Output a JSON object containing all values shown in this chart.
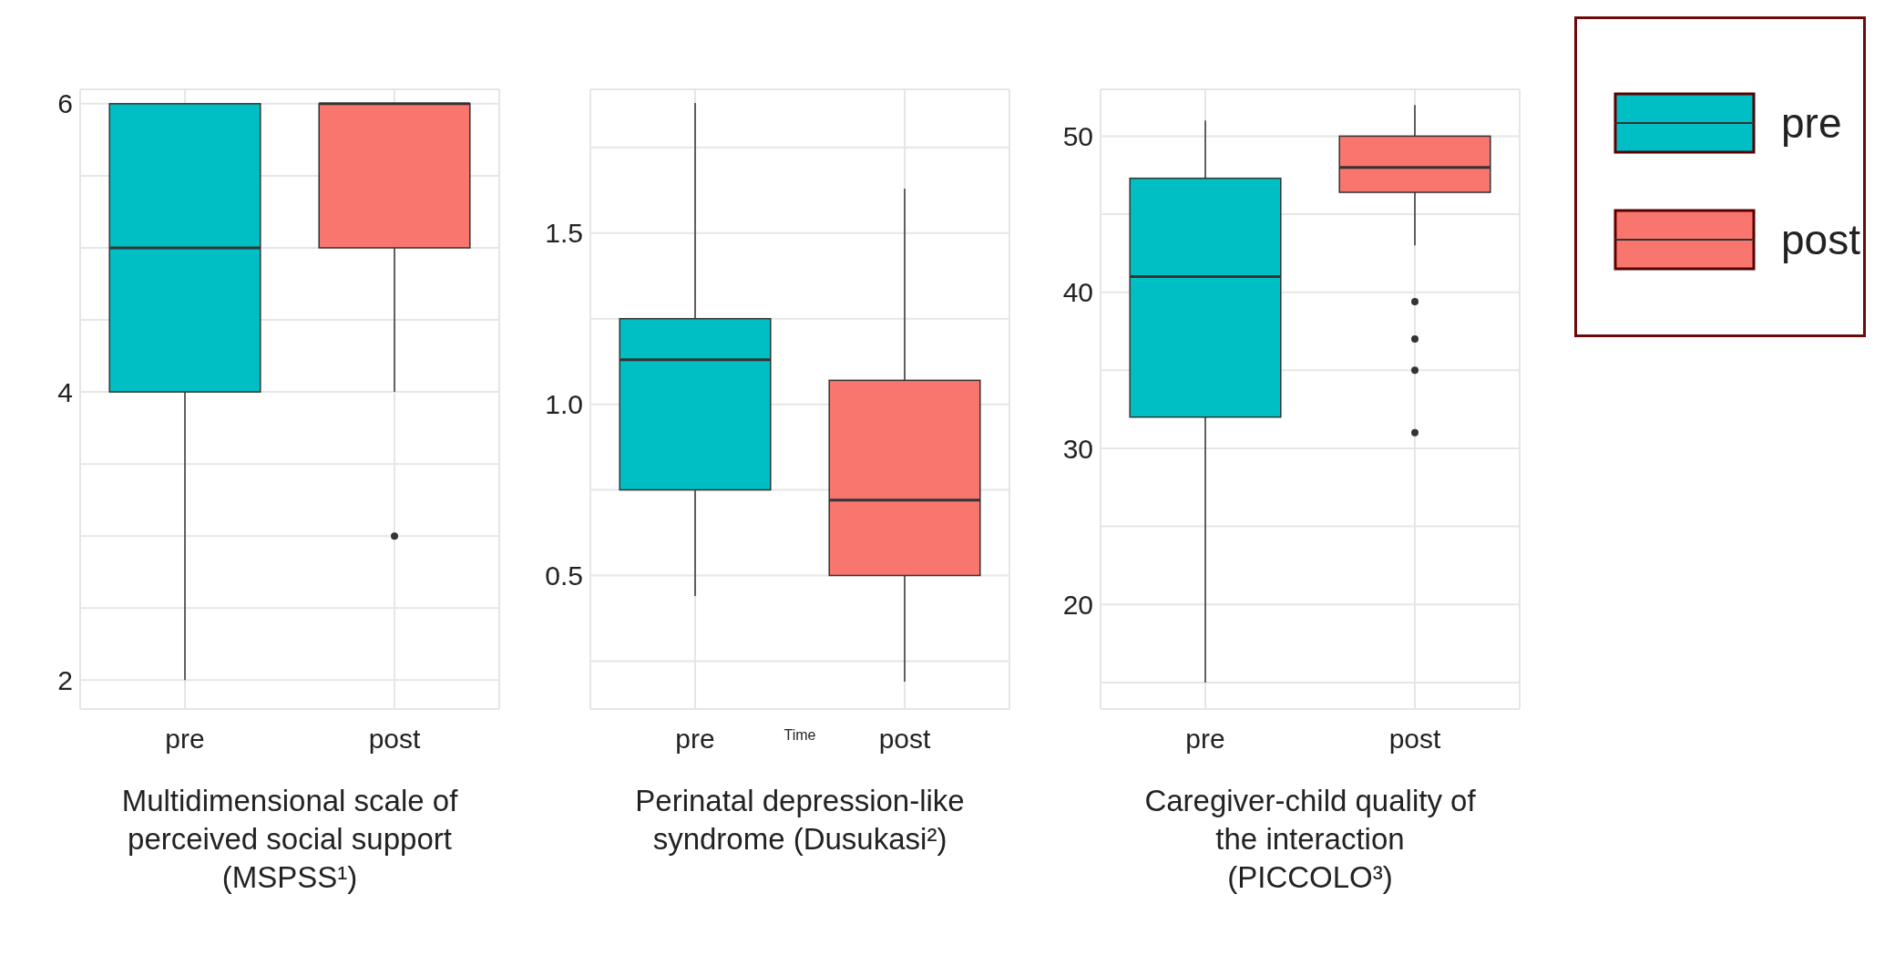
{
  "chart_data": [
    {
      "type": "box",
      "categories": [
        "pre",
        "post"
      ],
      "ylim": [
        1.8,
        6.1
      ],
      "yticks": [
        2,
        {
          "value": 2.5,
          "label": null
        },
        {
          "value": 3,
          "label": null
        },
        {
          "value": 3.5,
          "label": null
        },
        4,
        {
          "value": 4.5,
          "label": null
        },
        {
          "value": 5,
          "label": null
        },
        {
          "value": 5.5,
          "label": null
        },
        6
      ],
      "grid": true,
      "series": [
        {
          "color": "#00bfc4",
          "boxes": [
            {
              "low": 2,
              "q1": 4,
              "median": 5,
              "q3": 6,
              "high": 6
            },
            null
          ]
        },
        {
          "color": "#f8766d",
          "boxes": [
            null,
            {
              "low": 4,
              "q1": 5,
              "median": 6,
              "q3": 6,
              "high": 6,
              "outliers": [
                3
              ]
            }
          ]
        }
      ],
      "annotations": [
        "Multidimensional scale of perceived social support (MSPSS¹)"
      ]
    },
    {
      "type": "box",
      "categories": [
        "pre",
        "post"
      ],
      "xlabel": "Time",
      "ylim": [
        0.11,
        1.92
      ],
      "yticks": [
        {
          "value": 0.25,
          "label": null
        },
        {
          "value": 0.5,
          "label": "0.5"
        },
        {
          "value": 0.75,
          "label": null
        },
        {
          "value": 1,
          "label": "1.0"
        },
        {
          "value": 1.25,
          "label": null
        },
        {
          "value": 1.5,
          "label": "1.5"
        },
        {
          "value": 1.75,
          "label": null
        }
      ],
      "grid": true,
      "series": [
        {
          "color": "#00bfc4",
          "boxes": [
            {
              "low": 0.44,
              "q1": 0.75,
              "median": 1.13,
              "q3": 1.25,
              "high": 1.88
            },
            null
          ]
        },
        {
          "color": "#f8766d",
          "boxes": [
            null,
            {
              "low": 0.19,
              "q1": 0.5,
              "median": 0.72,
              "q3": 1.07,
              "high": 1.63
            }
          ]
        }
      ],
      "annotations": [
        "Perinatal depression-like syndrome (Dusukasi²)"
      ]
    },
    {
      "type": "box",
      "categories": [
        "pre",
        "post"
      ],
      "ylim": [
        13.3,
        53
      ],
      "yticks": [
        {
          "value": 15,
          "label": null
        },
        20,
        {
          "value": 25,
          "label": null
        },
        30,
        {
          "value": 35,
          "label": null
        },
        40,
        {
          "value": 45,
          "label": null
        },
        50
      ],
      "grid": true,
      "legend": "right",
      "series": [
        {
          "name": "pre",
          "color": "#00bfc4",
          "boxes": [
            {
              "low": 15,
              "q1": 32,
              "median": 41,
              "q3": 47.3,
              "high": 51
            },
            null
          ]
        },
        {
          "name": "post",
          "color": "#f8766d",
          "boxes": [
            null,
            {
              "low": 43,
              "q1": 46.4,
              "median": 48,
              "q3": 50,
              "high": 52,
              "outliers": [
                39.4,
                37,
                35,
                31
              ]
            }
          ]
        }
      ],
      "annotations": [
        "Caregiver-child quality of the interaction (PICCOLO³)"
      ]
    }
  ]
}
